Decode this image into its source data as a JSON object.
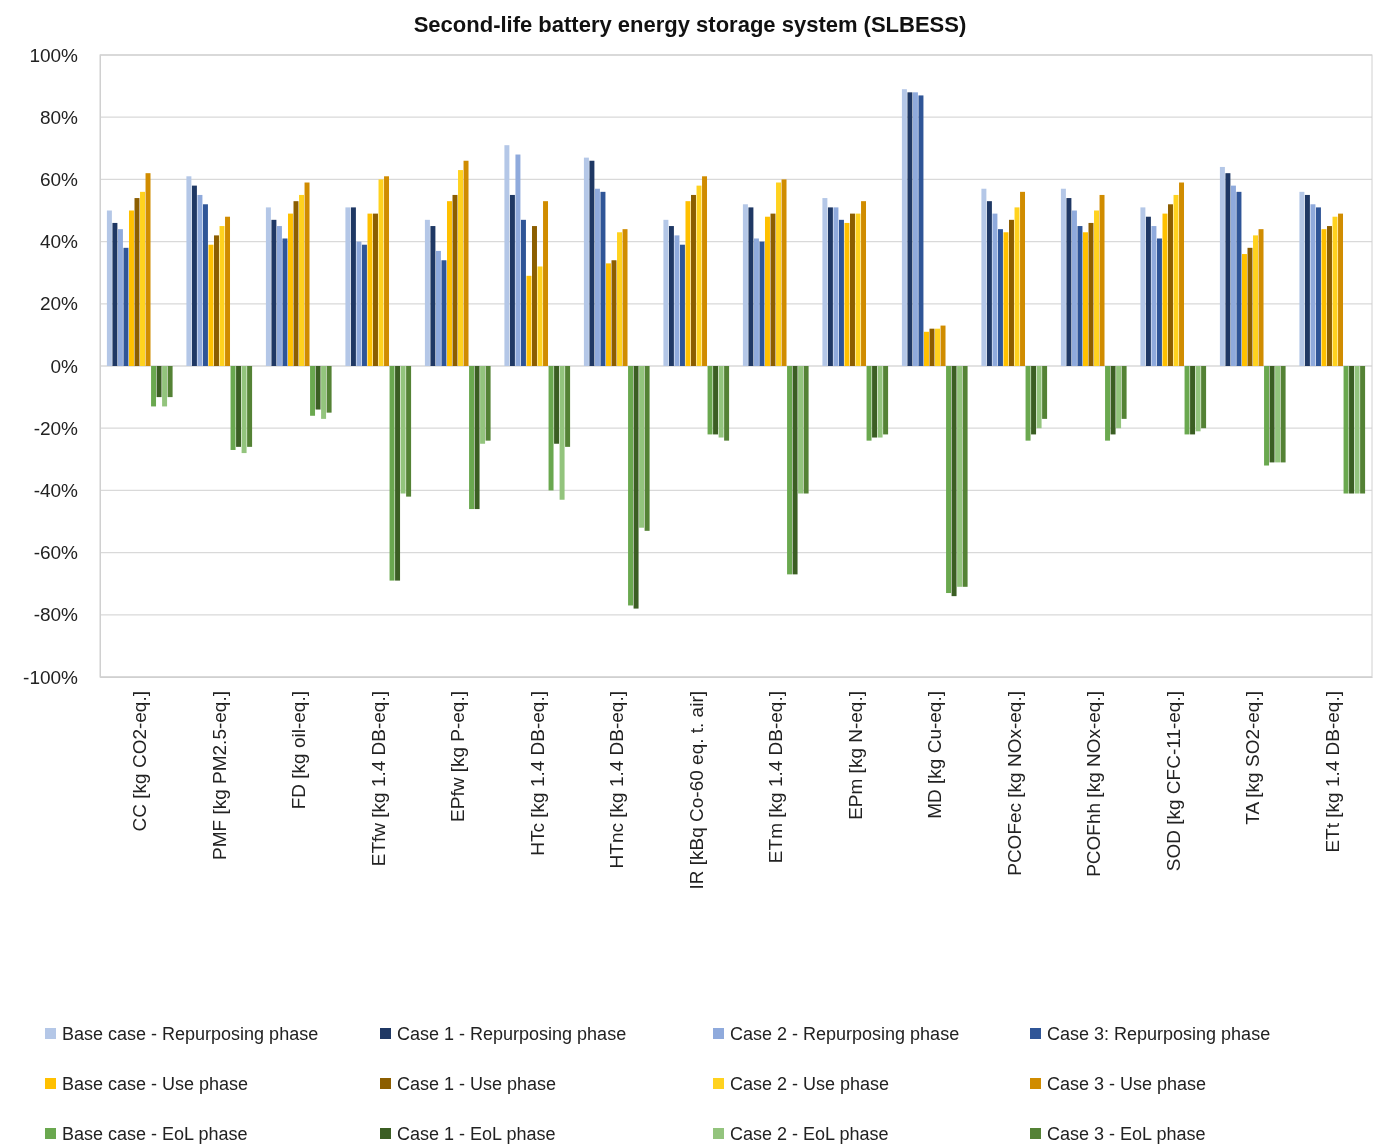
{
  "chart_data": {
    "type": "bar",
    "title": "Second-life battery energy storage system (SLBESS)",
    "categories": [
      "CC [kg CO2-eq.]",
      "PMF [kg PM2.5-eq.]",
      "FD [kg oil-eq.]",
      "ETfw [kg 1.4 DB-eq.]",
      "EPfw [kg P-eq.]",
      "HTc [kg 1.4 DB-eq.]",
      "HTnc [kg 1.4 DB-eq.]",
      "IR [kBq Co-60 eq. t. air]",
      "ETm [kg 1.4 DB-eq.]",
      "EPm [kg N-eq.]",
      "MD [kg Cu-eq.]",
      "PCOFec [kg NOx-eq.]",
      "PCOFhh [kg NOx-eq.]",
      "SOD [kg CFC-11-eq.]",
      "TA [kg SO2-eq.]",
      "ETt [kg 1.4 DB-eq.]"
    ],
    "series": [
      {
        "name": "Base case - Repurposing phase",
        "color": "#b4c7e7",
        "values": [
          50,
          61,
          51,
          51,
          47,
          71,
          67,
          47,
          52,
          54,
          89,
          57,
          57,
          51,
          64,
          56
        ]
      },
      {
        "name": "Case 1 - Repurposing phase",
        "color": "#1f3864",
        "values": [
          46,
          58,
          47,
          51,
          45,
          55,
          66,
          45,
          51,
          51,
          88,
          53,
          54,
          48,
          62,
          55
        ]
      },
      {
        "name": "Case 2 - Repurposing phase",
        "color": "#8faadc",
        "values": [
          44,
          55,
          45,
          40,
          37,
          68,
          57,
          42,
          41,
          51,
          88,
          49,
          50,
          45,
          58,
          52
        ]
      },
      {
        "name": "Case 3: Repurposing phase",
        "color": "#2f5597",
        "values": [
          38,
          52,
          41,
          39,
          34,
          47,
          56,
          39,
          40,
          47,
          87,
          44,
          45,
          41,
          56,
          51
        ]
      },
      {
        "name": "Base case - Use phase",
        "color": "#ffc000",
        "values": [
          50,
          39,
          49,
          49,
          53,
          29,
          33,
          53,
          48,
          46,
          11,
          43,
          43,
          49,
          36,
          44
        ]
      },
      {
        "name": "Case 1 - Use phase",
        "color": "#8c5e00",
        "values": [
          54,
          42,
          53,
          49,
          55,
          45,
          34,
          55,
          49,
          49,
          12,
          47,
          46,
          52,
          38,
          45
        ]
      },
      {
        "name": "Case 2 - Use phase",
        "color": "#ffd21f",
        "values": [
          56,
          45,
          55,
          60,
          63,
          32,
          43,
          58,
          59,
          49,
          12,
          51,
          50,
          55,
          42,
          48
        ]
      },
      {
        "name": "Case 3 - Use phase",
        "color": "#d08c00",
        "values": [
          62,
          48,
          59,
          61,
          66,
          53,
          44,
          61,
          60,
          53,
          13,
          56,
          55,
          59,
          44,
          49
        ]
      },
      {
        "name": "Base case  - EoL phase",
        "color": "#6aa84f",
        "values": [
          -13,
          -27,
          -16,
          -69,
          -46,
          -40,
          -77,
          -22,
          -67,
          -24,
          -73,
          -24,
          -24,
          -22,
          -32,
          -41
        ]
      },
      {
        "name": "Case 1 - EoL phase",
        "color": "#3b5e23",
        "values": [
          -10,
          -26,
          -14,
          -69,
          -46,
          -25,
          -78,
          -22,
          -67,
          -23,
          -74,
          -22,
          -22,
          -22,
          -31,
          -41
        ]
      },
      {
        "name": "Case 2 - EoL phase",
        "color": "#93c47d",
        "values": [
          -13,
          -28,
          -17,
          -41,
          -25,
          -43,
          -52,
          -23,
          -41,
          -23,
          -71,
          -20,
          -20,
          -21,
          -31,
          -41
        ]
      },
      {
        "name": "Case 3 - EoL phase",
        "color": "#548235",
        "values": [
          -10,
          -26,
          -15,
          -42,
          -24,
          -26,
          -53,
          -24,
          -41,
          -22,
          -71,
          -17,
          -17,
          -20,
          -31,
          -41
        ]
      }
    ],
    "ylim": [
      -100,
      100
    ],
    "yticks": [
      {
        "value": -100,
        "label": "-100%"
      },
      {
        "value": -80,
        "label": "-80%"
      },
      {
        "value": -60,
        "label": "-60%"
      },
      {
        "value": -40,
        "label": "-40%"
      },
      {
        "value": -20,
        "label": "-20%"
      },
      {
        "value": 0,
        "label": "0%"
      },
      {
        "value": 20,
        "label": "20%"
      },
      {
        "value": 40,
        "label": "40%"
      },
      {
        "value": 60,
        "label": "60%"
      },
      {
        "value": 80,
        "label": "80%"
      },
      {
        "value": 100,
        "label": "100%"
      }
    ],
    "grid": "y",
    "legend": "bottom"
  }
}
